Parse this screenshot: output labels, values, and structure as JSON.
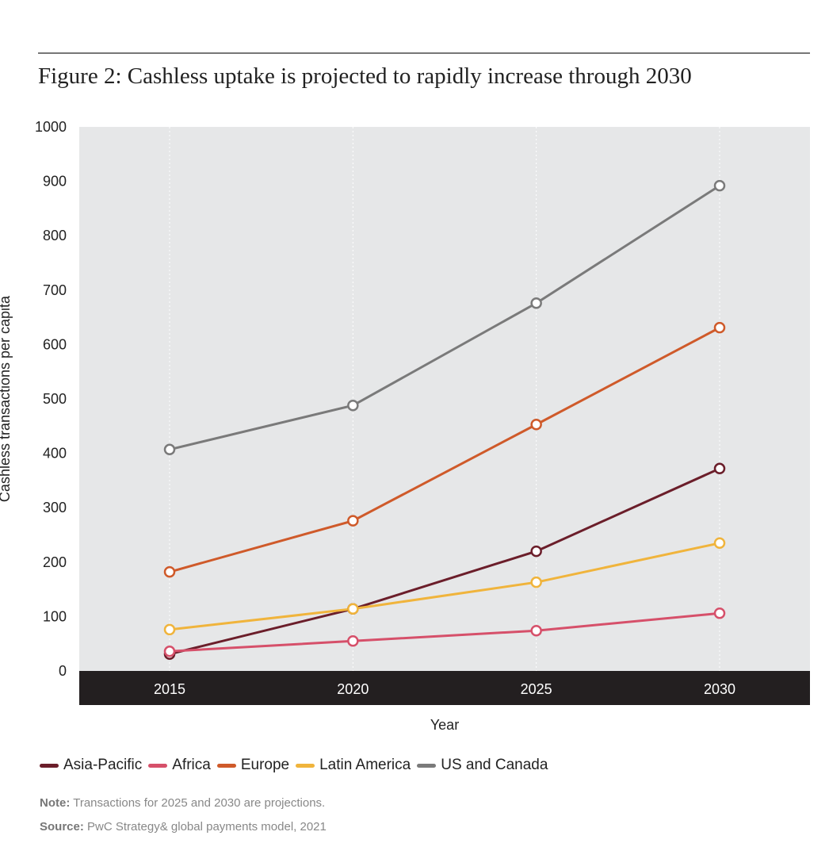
{
  "title": "Figure 2: Cashless uptake is projected to rapidly increase through 2030",
  "chart_data": {
    "type": "line",
    "title": "Figure 2: Cashless uptake is projected to rapidly increase through 2030",
    "xlabel": "Year",
    "ylabel": "Cashless transactions per capita",
    "x": [
      2015,
      2020,
      2025,
      2030
    ],
    "ylim": [
      0,
      1000
    ],
    "yticks": [
      0,
      100,
      200,
      300,
      400,
      500,
      600,
      700,
      800,
      900,
      1000
    ],
    "grid": "vertical dotted",
    "legend_position": "bottom",
    "series": [
      {
        "name": "Asia-Pacific",
        "color": "#6b1e2a",
        "values": [
          31,
          114,
          220,
          372
        ]
      },
      {
        "name": "Africa",
        "color": "#d6506a",
        "values": [
          36,
          55,
          74,
          106
        ]
      },
      {
        "name": "Europe",
        "color": "#cf5a2a",
        "values": [
          182,
          276,
          453,
          631
        ]
      },
      {
        "name": "Latin America",
        "color": "#f0b43c",
        "values": [
          76,
          114,
          163,
          235
        ]
      },
      {
        "name": "US and Canada",
        "color": "#7a7a7a",
        "values": [
          407,
          488,
          676,
          892
        ]
      }
    ]
  },
  "note_label": "Note:",
  "note_text": " Transactions for 2025 and 2030 are projections.",
  "source_label": "Source:",
  "source_text": " PwC Strategy& global payments model, 2021"
}
